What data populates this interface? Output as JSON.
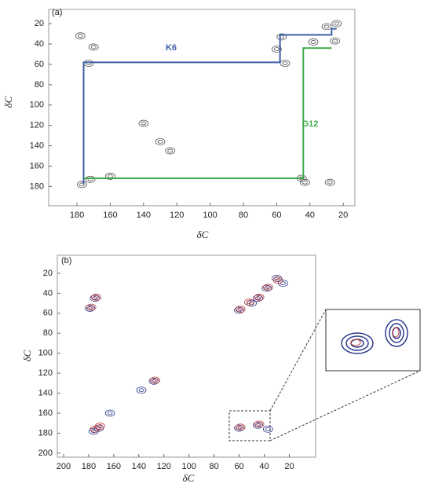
{
  "chart_data": [
    {
      "type": "spectrum",
      "panel_label": "(a)",
      "xlabel": "δC",
      "ylabel": "δC",
      "xlim": [
        197,
        13
      ],
      "ylim": [
        6,
        199
      ],
      "xticks": [
        180,
        160,
        140,
        120,
        100,
        80,
        60,
        40,
        20
      ],
      "yticks": [
        20,
        40,
        60,
        80,
        100,
        120,
        140,
        160,
        180
      ],
      "series": [
        {
          "style": "peaks",
          "color": "#555555",
          "x": [
            177,
            172,
            173,
            170,
            178,
            45,
            60,
            57,
            55,
            38,
            25,
            24,
            30,
            130,
            124,
            140,
            160,
            28,
            43
          ],
          "values": [
            178,
            173,
            59,
            43,
            32,
            172,
            45,
            33,
            59,
            38,
            37,
            20,
            23,
            136,
            145,
            118,
            170,
            176,
            176
          ]
        },
        {
          "style": "path",
          "name": "K6",
          "color": "#3b5ea8",
          "x": [
            176,
            176,
            58,
            58,
            27,
            27,
            24
          ],
          "values": [
            178,
            58,
            58,
            31,
            31,
            25,
            25
          ]
        },
        {
          "style": "path",
          "name": "G12",
          "color": "#3daa4a",
          "x": [
            176,
            44,
            44,
            27
          ],
          "values": [
            172,
            172,
            44,
            44
          ]
        }
      ]
    },
    {
      "type": "spectrum",
      "panel_label": "(b)",
      "xlabel": "δC",
      "ylabel": "δC",
      "xlim": [
        205,
        -1
      ],
      "ylim": [
        2,
        204
      ],
      "xticks": [
        200,
        180,
        160,
        140,
        120,
        100,
        80,
        60,
        40,
        20
      ],
      "yticks": [
        20,
        40,
        60,
        80,
        100,
        120,
        140,
        160,
        180,
        200
      ],
      "series": [
        {
          "style": "peaks",
          "color": "#2a3a8c",
          "x": [
            176,
            172,
            179,
            175,
            60,
            45,
            38,
            30,
            25,
            50,
            128,
            138,
            60,
            45,
            37,
            163
          ],
          "values": [
            178,
            175,
            55,
            45,
            57,
            45,
            35,
            25,
            30,
            50,
            128,
            137,
            175,
            172,
            176,
            160
          ]
        },
        {
          "style": "peaks",
          "color": "#c04040",
          "x": [
            175,
            171,
            178,
            174,
            59,
            44,
            37,
            29,
            52,
            127,
            59,
            44
          ],
          "values": [
            176,
            173,
            54,
            44,
            56,
            44,
            34,
            27,
            49,
            127,
            174,
            171
          ]
        }
      ]
    }
  ]
}
